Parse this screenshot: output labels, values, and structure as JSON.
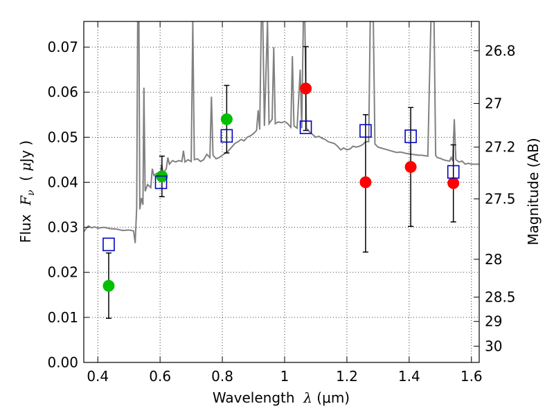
{
  "chart_data": {
    "type": "scatter",
    "xlabel": "Wavelength  λ (μm)",
    "xlabel_parts": {
      "prefix": "Wavelength  ",
      "symbol": "λ",
      "unit": " (μm)"
    },
    "ylabel_left": "Flux  Fν  ( μJy )",
    "ylabel_left_parts": {
      "prefix": "Flux  ",
      "symbol": "F",
      "sub": "ν",
      "mid": "  ( ",
      "mu": "μ",
      "unit": "Jy )"
    },
    "ylabel_right": "Magnitude (AB)",
    "xlim": [
      0.355,
      1.625
    ],
    "ylim": [
      0.0,
      0.0757
    ],
    "x_ticks": [
      0.4,
      0.6,
      0.8,
      1.0,
      1.2,
      1.4,
      1.6
    ],
    "x_tick_labels": [
      "0.4",
      "0.6",
      "0.8",
      "1",
      "1.2",
      "1.4",
      "1.6"
    ],
    "y_ticks": [
      0.0,
      0.01,
      0.02,
      0.03,
      0.04,
      0.05,
      0.06,
      0.07
    ],
    "y_tick_labels": [
      "0.00",
      "0.01",
      "0.02",
      "0.03",
      "0.04",
      "0.05",
      "0.06",
      "0.07"
    ],
    "right_ticks": [
      {
        "label": "26.8",
        "flux": 0.0692
      },
      {
        "label": "27",
        "flux": 0.0575
      },
      {
        "label": "27.2",
        "flux": 0.0478
      },
      {
        "label": "27.5",
        "flux": 0.0363
      },
      {
        "label": "28",
        "flux": 0.0229
      },
      {
        "label": "28.5",
        "flux": 0.0145
      },
      {
        "label": "29",
        "flux": 0.0091
      },
      {
        "label": "30",
        "flux": 0.0036
      }
    ],
    "grid": true,
    "series": [
      {
        "kind": "model_sed",
        "color": "#808080",
        "points": [
          [
            0.355,
            0.029
          ],
          [
            0.362,
            0.0297
          ],
          [
            0.37,
            0.0303
          ],
          [
            0.38,
            0.0299
          ],
          [
            0.39,
            0.0301
          ],
          [
            0.4,
            0.0298
          ],
          [
            0.42,
            0.03
          ],
          [
            0.44,
            0.0297
          ],
          [
            0.46,
            0.0296
          ],
          [
            0.48,
            0.0293
          ],
          [
            0.5,
            0.0294
          ],
          [
            0.515,
            0.0292
          ],
          [
            0.52,
            0.0265
          ],
          [
            0.525,
            0.0345
          ],
          [
            0.528,
            0.0757
          ],
          [
            0.532,
            0.0757
          ],
          [
            0.535,
            0.034
          ],
          [
            0.54,
            0.0365
          ],
          [
            0.545,
            0.035
          ],
          [
            0.548,
            0.061
          ],
          [
            0.552,
            0.038
          ],
          [
            0.56,
            0.0395
          ],
          [
            0.57,
            0.0388
          ],
          [
            0.575,
            0.043
          ],
          [
            0.58,
            0.0415
          ],
          [
            0.59,
            0.042
          ],
          [
            0.6,
            0.0418
          ],
          [
            0.605,
            0.044
          ],
          [
            0.61,
            0.042
          ],
          [
            0.62,
            0.043
          ],
          [
            0.625,
            0.0455
          ],
          [
            0.63,
            0.044
          ],
          [
            0.64,
            0.0448
          ],
          [
            0.65,
            0.0445
          ],
          [
            0.66,
            0.0448
          ],
          [
            0.67,
            0.0446
          ],
          [
            0.675,
            0.047
          ],
          [
            0.68,
            0.0445
          ],
          [
            0.69,
            0.045
          ],
          [
            0.7,
            0.0446
          ],
          [
            0.705,
            0.0757
          ],
          [
            0.71,
            0.045
          ],
          [
            0.72,
            0.0452
          ],
          [
            0.73,
            0.0446
          ],
          [
            0.74,
            0.045
          ],
          [
            0.75,
            0.0462
          ],
          [
            0.76,
            0.0455
          ],
          [
            0.765,
            0.059
          ],
          [
            0.77,
            0.046
          ],
          [
            0.78,
            0.0452
          ],
          [
            0.79,
            0.0455
          ],
          [
            0.8,
            0.046
          ],
          [
            0.81,
            0.0465
          ],
          [
            0.82,
            0.047
          ],
          [
            0.83,
            0.0478
          ],
          [
            0.84,
            0.0486
          ],
          [
            0.85,
            0.049
          ],
          [
            0.86,
            0.0495
          ],
          [
            0.87,
            0.0492
          ],
          [
            0.88,
            0.05
          ],
          [
            0.89,
            0.0503
          ],
          [
            0.9,
            0.0508
          ],
          [
            0.91,
            0.0515
          ],
          [
            0.915,
            0.056
          ],
          [
            0.92,
            0.0517
          ],
          [
            0.925,
            0.0757
          ],
          [
            0.93,
            0.0757
          ],
          [
            0.935,
            0.0525
          ],
          [
            0.945,
            0.0757
          ],
          [
            0.95,
            0.053
          ],
          [
            0.96,
            0.054
          ],
          [
            0.965,
            0.07
          ],
          [
            0.97,
            0.053
          ],
          [
            0.98,
            0.0534
          ],
          [
            0.99,
            0.0532
          ],
          [
            1.0,
            0.0535
          ],
          [
            1.01,
            0.053
          ],
          [
            1.02,
            0.0522
          ],
          [
            1.025,
            0.068
          ],
          [
            1.03,
            0.0525
          ],
          [
            1.04,
            0.052
          ],
          [
            1.05,
            0.065
          ],
          [
            1.055,
            0.052
          ],
          [
            1.06,
            0.0757
          ],
          [
            1.065,
            0.0757
          ],
          [
            1.07,
            0.052
          ],
          [
            1.08,
            0.0512
          ],
          [
            1.09,
            0.0506
          ],
          [
            1.1,
            0.05
          ],
          [
            1.11,
            0.0502
          ],
          [
            1.12,
            0.0498
          ],
          [
            1.13,
            0.0495
          ],
          [
            1.14,
            0.049
          ],
          [
            1.15,
            0.0488
          ],
          [
            1.16,
            0.0486
          ],
          [
            1.17,
            0.048
          ],
          [
            1.18,
            0.0472
          ],
          [
            1.19,
            0.0476
          ],
          [
            1.2,
            0.0472
          ],
          [
            1.21,
            0.0474
          ],
          [
            1.22,
            0.048
          ],
          [
            1.23,
            0.0478
          ],
          [
            1.24,
            0.048
          ],
          [
            1.25,
            0.0483
          ],
          [
            1.26,
            0.049
          ],
          [
            1.27,
            0.049
          ],
          [
            1.275,
            0.0757
          ],
          [
            1.285,
            0.0757
          ],
          [
            1.29,
            0.0485
          ],
          [
            1.3,
            0.0478
          ],
          [
            1.31,
            0.0476
          ],
          [
            1.32,
            0.0474
          ],
          [
            1.33,
            0.0472
          ],
          [
            1.34,
            0.047
          ],
          [
            1.35,
            0.0468
          ],
          [
            1.36,
            0.0466
          ],
          [
            1.37,
            0.0467
          ],
          [
            1.38,
            0.0466
          ],
          [
            1.39,
            0.0464
          ],
          [
            1.4,
            0.0463
          ],
          [
            1.41,
            0.0462
          ],
          [
            1.42,
            0.0461
          ],
          [
            1.43,
            0.046
          ],
          [
            1.44,
            0.046
          ],
          [
            1.45,
            0.0459
          ],
          [
            1.46,
            0.0458
          ],
          [
            1.465,
            0.062
          ],
          [
            1.47,
            0.0757
          ],
          [
            1.48,
            0.0757
          ],
          [
            1.485,
            0.046
          ],
          [
            1.49,
            0.0455
          ],
          [
            1.5,
            0.0453
          ],
          [
            1.51,
            0.045
          ],
          [
            1.52,
            0.0448
          ],
          [
            1.53,
            0.0447
          ],
          [
            1.535,
            0.0455
          ],
          [
            1.54,
            0.0447
          ],
          [
            1.545,
            0.054
          ],
          [
            1.55,
            0.045
          ],
          [
            1.56,
            0.0445
          ],
          [
            1.57,
            0.0447
          ],
          [
            1.58,
            0.044
          ],
          [
            1.59,
            0.0442
          ],
          [
            1.6,
            0.044
          ],
          [
            1.61,
            0.044
          ],
          [
            1.625,
            0.044
          ]
        ]
      },
      {
        "kind": "model_photometry",
        "marker": "open-square",
        "color": "#0000c0",
        "points": [
          [
            0.435,
            0.0262
          ],
          [
            0.603,
            0.04
          ],
          [
            0.814,
            0.0503
          ],
          [
            1.068,
            0.0522
          ],
          [
            1.26,
            0.0514
          ],
          [
            1.405,
            0.0502
          ],
          [
            1.542,
            0.0423
          ]
        ]
      },
      {
        "kind": "observed_optical",
        "marker": "filled-circle",
        "color": "#00c000",
        "points": [
          [
            0.435,
            0.017
          ],
          [
            0.606,
            0.0413
          ],
          [
            0.814,
            0.054
          ]
        ]
      },
      {
        "kind": "observed_nir",
        "marker": "filled-circle",
        "color": "#ff0000",
        "points": [
          [
            1.068,
            0.0608
          ],
          [
            1.26,
            0.04
          ],
          [
            1.405,
            0.0434
          ],
          [
            1.542,
            0.0398
          ]
        ]
      },
      {
        "kind": "error_bars",
        "color": "#000000",
        "bars": [
          {
            "x": 0.435,
            "low": 0.0098,
            "high": 0.0243
          },
          {
            "x": 0.606,
            "low": 0.0368,
            "high": 0.0458
          },
          {
            "x": 0.814,
            "low": 0.0465,
            "high": 0.0615
          },
          {
            "x": 1.068,
            "low": 0.0515,
            "high": 0.0701
          },
          {
            "x": 1.26,
            "low": 0.0245,
            "high": 0.055
          },
          {
            "x": 1.405,
            "low": 0.0302,
            "high": 0.0566
          },
          {
            "x": 1.542,
            "low": 0.0312,
            "high": 0.0483
          }
        ]
      }
    ]
  }
}
